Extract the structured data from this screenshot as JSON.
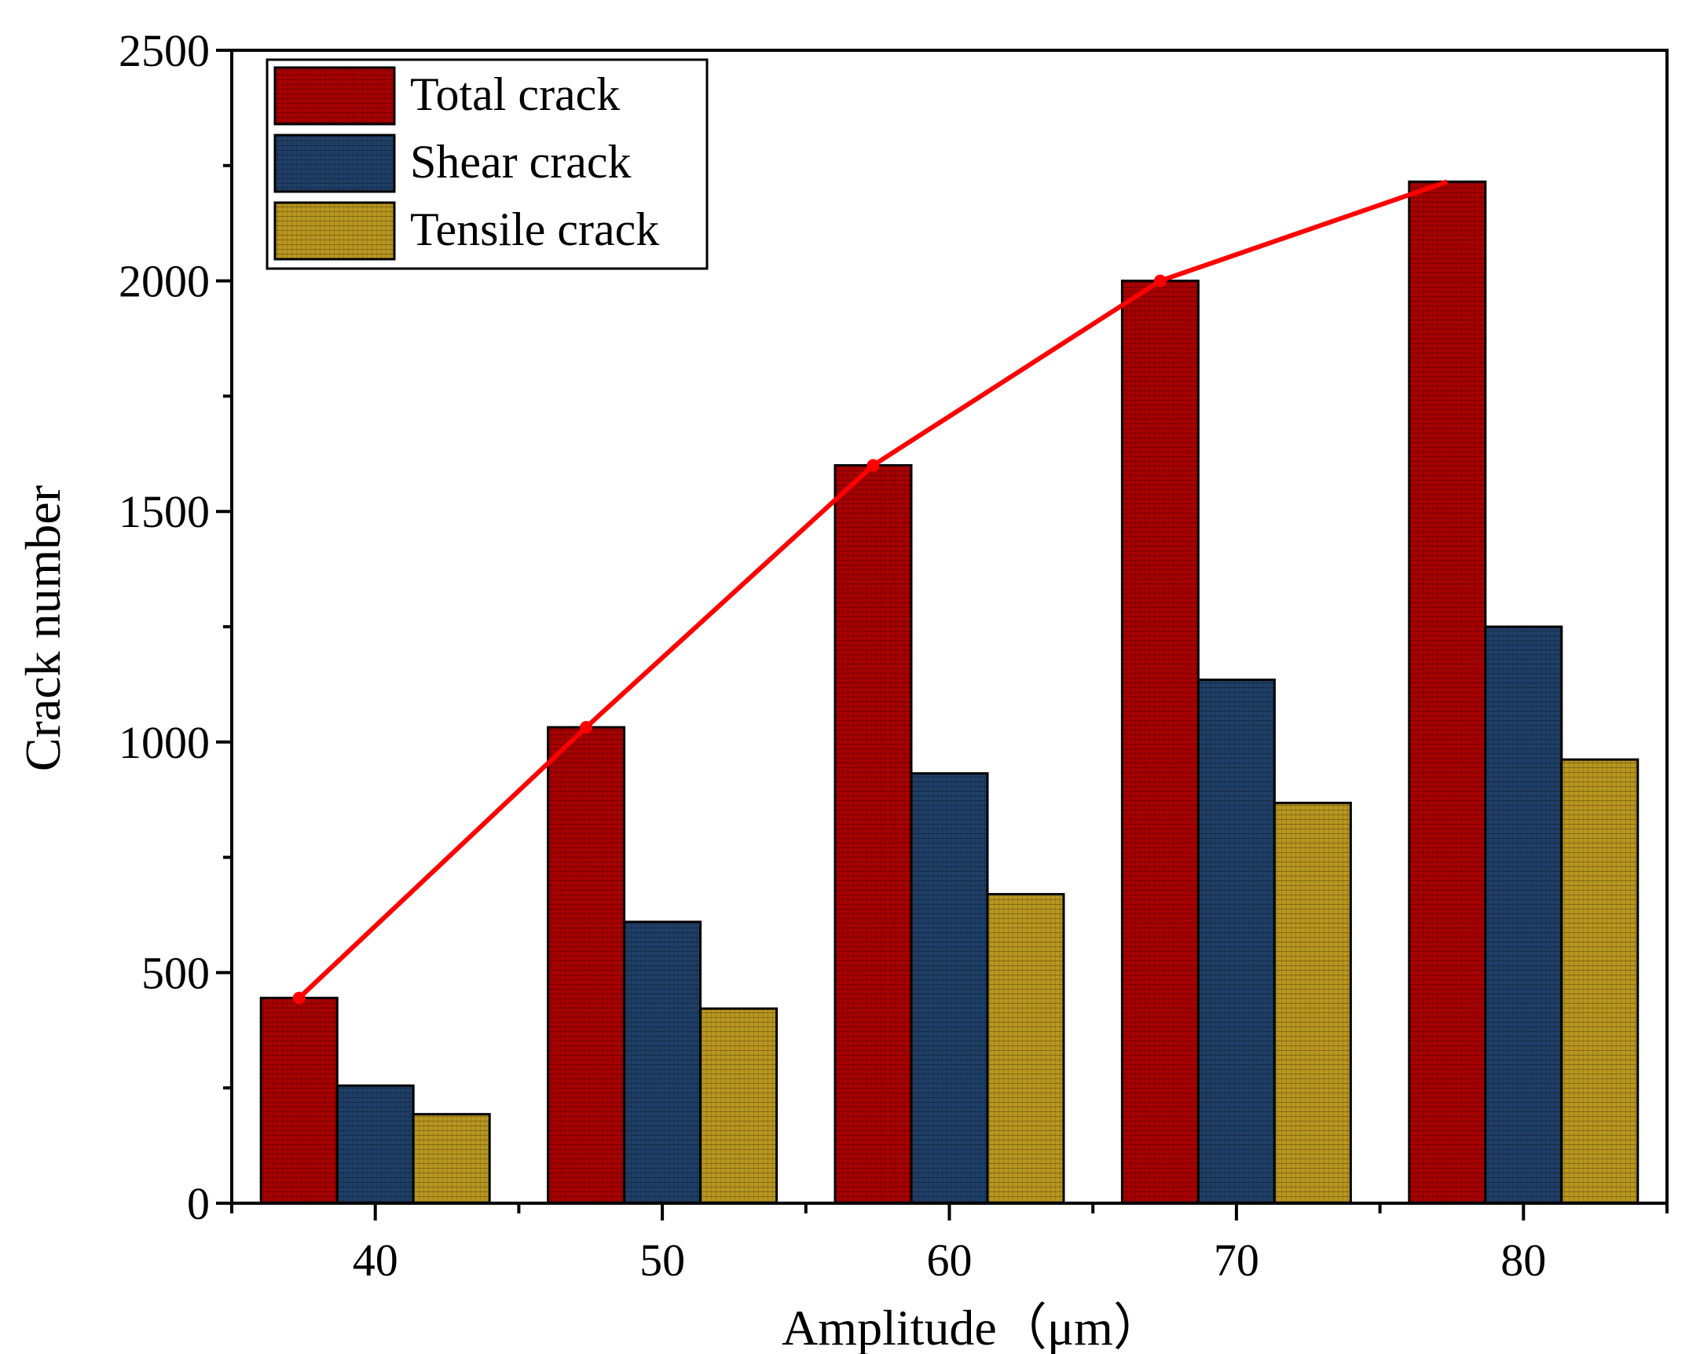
{
  "chart_data": {
    "type": "bar",
    "title": "",
    "xlabel": "Amplitude（μm）",
    "ylabel": "Crack number",
    "categories": [
      "40",
      "50",
      "60",
      "70",
      "80"
    ],
    "series": [
      {
        "name": "Total crack",
        "values": [
          445,
          1032,
          1600,
          2000,
          2215
        ],
        "color": "#a80000"
      },
      {
        "name": "Shear crack",
        "values": [
          255,
          610,
          932,
          1135,
          1250
        ],
        "color": "#1f3f66"
      },
      {
        "name": "Tensile crack",
        "values": [
          193,
          422,
          670,
          868,
          962
        ],
        "color": "#b8961f"
      }
    ],
    "trend_line": {
      "series": "Total crack",
      "color": "#ff0000"
    },
    "ylim": [
      0,
      2500
    ],
    "y_ticks": [
      0,
      500,
      1000,
      1500,
      2000,
      2500
    ],
    "legend_position": "top-left",
    "grid": false
  }
}
